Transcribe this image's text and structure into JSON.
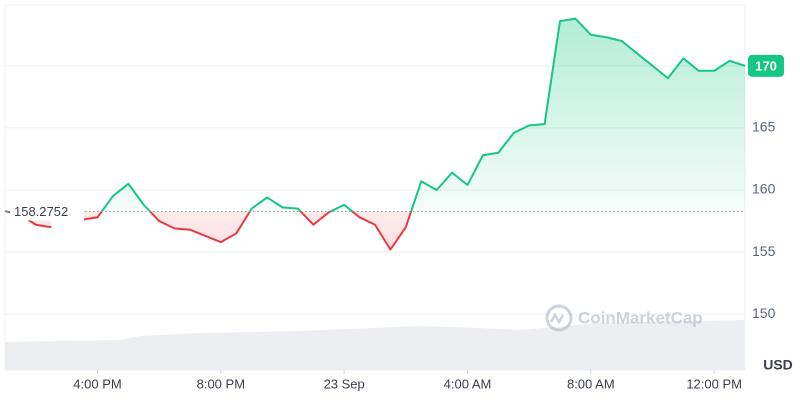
{
  "chart_data": {
    "type": "line",
    "x": [
      0,
      0.5,
      1,
      1.5,
      2,
      2.5,
      3,
      3.5,
      4,
      4.5,
      5,
      5.5,
      6,
      6.5,
      7,
      7.5,
      8,
      8.5,
      9,
      9.5,
      10,
      10.5,
      11,
      11.5,
      12,
      12.5,
      13,
      13.5,
      14,
      14.5,
      15,
      15.5,
      16,
      16.5,
      17,
      17.5,
      18,
      18.5,
      19,
      19.5,
      20,
      20.5,
      21,
      21.5,
      22,
      22.5,
      23,
      23.5,
      24
    ],
    "values": [
      158.3,
      158.0,
      157.2,
      157.0,
      null,
      157.6,
      157.8,
      159.5,
      160.5,
      158.8,
      157.5,
      156.9,
      156.8,
      156.3,
      155.8,
      156.5,
      158.5,
      159.4,
      158.6,
      158.5,
      157.2,
      158.2,
      158.8,
      157.8,
      157.2,
      155.2,
      157.0,
      160.7,
      160.0,
      161.4,
      160.4,
      162.8,
      163.0,
      164.6,
      165.2,
      165.3,
      173.6,
      173.8,
      172.5,
      172.3,
      172.0,
      171.0,
      170.0,
      169.0,
      170.6,
      169.6,
      169.6,
      170.4,
      170
    ],
    "up_color": "#16c784",
    "down_color": "#ea3943",
    "baseline": 158.2752,
    "xlim": [
      0,
      24
    ],
    "xticks": [
      {
        "value": 3,
        "label": "4:00 PM"
      },
      {
        "value": 7,
        "label": "8:00 PM"
      },
      {
        "value": 11,
        "label": "23 Sep"
      },
      {
        "value": 15,
        "label": "4:00 AM"
      },
      {
        "value": 19,
        "label": "8:00 AM"
      },
      {
        "value": 23,
        "label": "12:00 PM"
      }
    ],
    "ylim": [
      145.5,
      174.9
    ],
    "yticks": [
      150,
      155,
      160,
      165,
      170
    ],
    "grid": true,
    "unit": "USD",
    "watermark": "CoinMarketCap"
  }
}
